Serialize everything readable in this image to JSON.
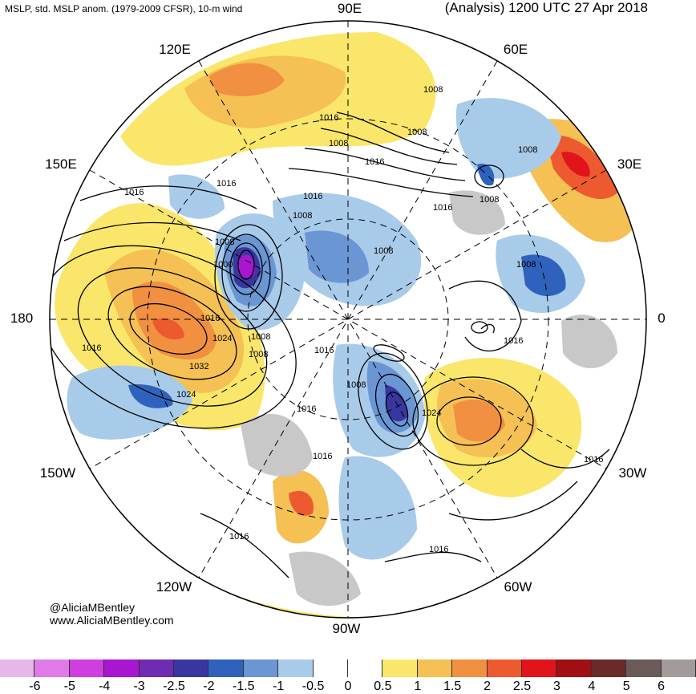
{
  "header": {
    "left_title": "MSLP, std. MSLP anom. (1979-2009 CFSR), 10-m wind",
    "right_title": "(Analysis) 1200 UTC 27 Apr 2018"
  },
  "map": {
    "projection": "north polar stereographic",
    "longitude_labels": [
      "90E",
      "60E",
      "30E",
      "0",
      "30W",
      "60W",
      "90W",
      "120W",
      "150W",
      "180",
      "150E",
      "120E"
    ],
    "isobar_labels": [
      "1008",
      "1016",
      "1008",
      "1008",
      "1016",
      "1016",
      "1016",
      "1008",
      "1008",
      "1008",
      "1008",
      "1016",
      "1000",
      "1008",
      "1016",
      "1024",
      "1032",
      "1024",
      "1016",
      "1016",
      "1008",
      "1008",
      "1016",
      "1016",
      "1024",
      "1016",
      "1016",
      "1016",
      "1016",
      "1008",
      "1016",
      "1008"
    ]
  },
  "credits": {
    "handle": "@AliciaMBentley",
    "site": "www.AliciaMBentley.com"
  },
  "colorbar": {
    "ticks": [
      "-6",
      "-5",
      "-4",
      "-3",
      "-2.5",
      "-2",
      "-1.5",
      "-1",
      "-0.5",
      "0",
      "0.5",
      "1",
      "1.5",
      "2",
      "2.5",
      "3",
      "4",
      "5",
      "6"
    ],
    "colors": [
      "#e6b8ea",
      "#e07ae8",
      "#cf3fe0",
      "#a816d1",
      "#6f2bb3",
      "#3a36a1",
      "#2f62bd",
      "#6a96d4",
      "#a9cbea",
      "#ffffff",
      "#ffffff",
      "#fae66a",
      "#f5c054",
      "#f09040",
      "#ee5a30",
      "#e0141a",
      "#a20f12",
      "#6b2a2a",
      "#6a5a5a",
      "#a39a9a"
    ]
  }
}
